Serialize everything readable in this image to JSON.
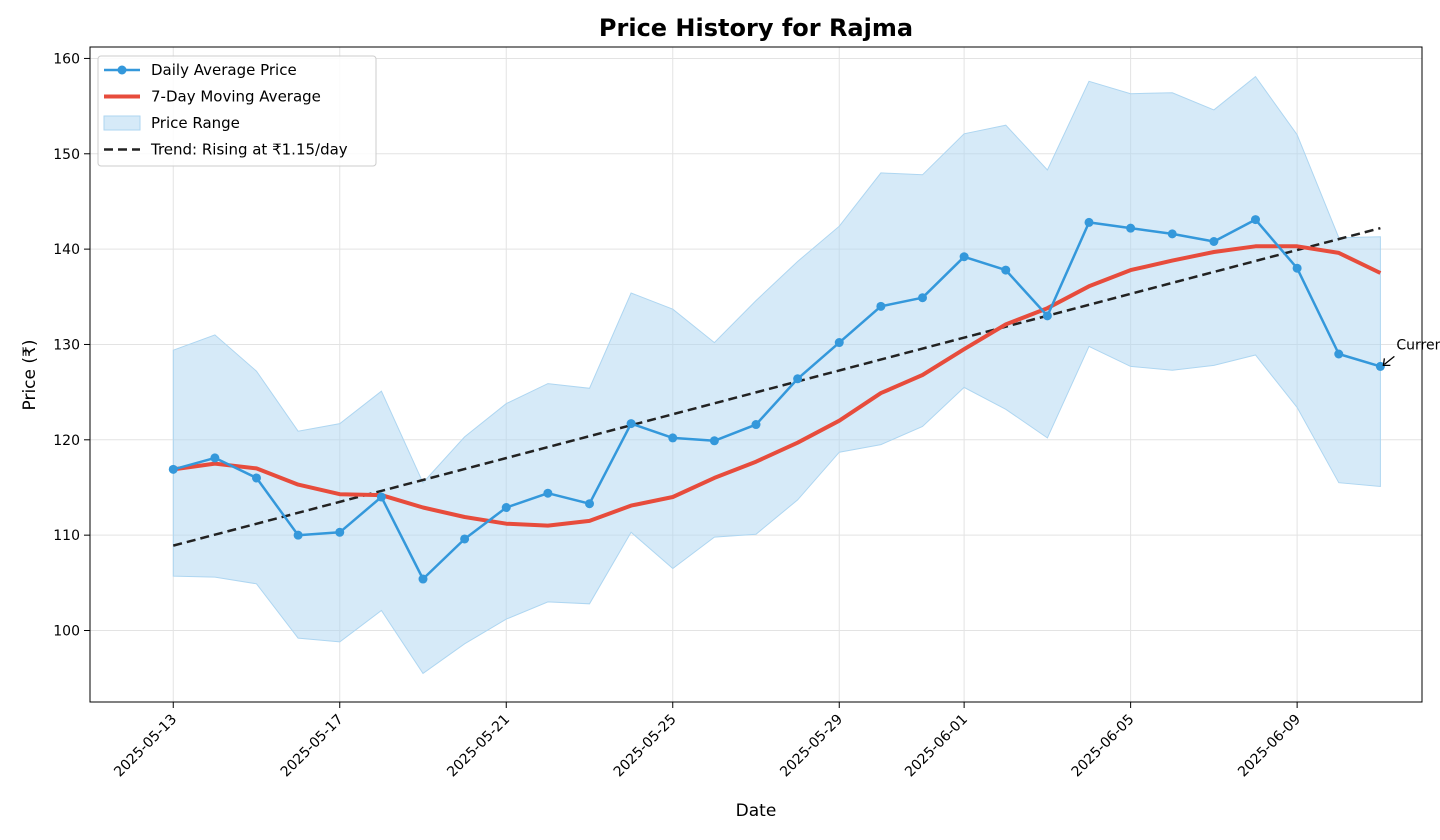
{
  "chart_data": {
    "type": "line",
    "title": "Price History for Rajma",
    "xlabel": "Date",
    "ylabel": "Price (₹)",
    "xlim": [
      "2025-05-11",
      "2025-06-12"
    ],
    "ylim": [
      92.5,
      161.2
    ],
    "grid": true,
    "legend_position": "top-left",
    "x_ticks": [
      "2025-05-13",
      "2025-05-17",
      "2025-05-21",
      "2025-05-25",
      "2025-05-29",
      "2025-06-01",
      "2025-06-05",
      "2025-06-09"
    ],
    "y_ticks": [
      100,
      110,
      120,
      130,
      140,
      150,
      160
    ],
    "dates": [
      "2025-05-13",
      "2025-05-14",
      "2025-05-15",
      "2025-05-16",
      "2025-05-17",
      "2025-05-18",
      "2025-05-19",
      "2025-05-20",
      "2025-05-21",
      "2025-05-22",
      "2025-05-23",
      "2025-05-24",
      "2025-05-25",
      "2025-05-26",
      "2025-05-27",
      "2025-05-28",
      "2025-05-29",
      "2025-05-30",
      "2025-05-31",
      "2025-06-01",
      "2025-06-02",
      "2025-06-03",
      "2025-06-04",
      "2025-06-05",
      "2025-06-06",
      "2025-06-07",
      "2025-06-08",
      "2025-06-09",
      "2025-06-10",
      "2025-06-11"
    ],
    "series": [
      {
        "name": "Daily Average Price",
        "color": "#3498db",
        "style": "line-marker",
        "values": [
          116.9,
          118.1,
          116.0,
          110.0,
          110.3,
          114.0,
          105.4,
          109.6,
          112.9,
          114.4,
          113.3,
          121.7,
          120.2,
          119.9,
          121.6,
          126.4,
          130.2,
          134.0,
          134.9,
          139.2,
          137.8,
          133.0,
          142.8,
          142.2,
          141.6,
          140.8,
          143.1,
          138.0,
          129.0,
          127.7
        ]
      },
      {
        "name": "7-Day Moving Average",
        "color": "#e74c3c",
        "style": "line",
        "values": [
          116.9,
          117.5,
          117.0,
          115.3,
          114.3,
          114.2,
          112.9,
          111.9,
          111.2,
          111.0,
          111.5,
          113.1,
          114.0,
          116.0,
          117.7,
          119.7,
          122.0,
          124.9,
          126.8,
          129.5,
          132.1,
          133.8,
          136.1,
          137.8,
          138.8,
          139.7,
          140.3,
          140.3,
          139.6,
          137.5
        ]
      },
      {
        "name": "Price Range",
        "color": "#aed6f1",
        "style": "band",
        "upper": [
          129.4,
          131.0,
          127.2,
          120.9,
          121.7,
          125.1,
          115.5,
          120.3,
          123.8,
          125.9,
          125.4,
          135.4,
          133.7,
          130.2,
          134.6,
          138.7,
          142.4,
          148.0,
          147.8,
          152.1,
          153.0,
          148.3,
          157.6,
          156.3,
          156.4,
          154.6,
          158.1,
          152.0,
          141.2,
          141.3
        ],
        "lower": [
          105.7,
          105.6,
          104.9,
          99.2,
          98.8,
          102.1,
          95.5,
          98.6,
          101.2,
          103.0,
          102.8,
          110.3,
          106.5,
          109.8,
          110.1,
          113.7,
          118.7,
          119.5,
          121.4,
          125.5,
          123.2,
          120.2,
          129.8,
          127.7,
          127.3,
          127.8,
          128.9,
          123.4,
          115.5,
          115.1
        ]
      },
      {
        "name": "Trend: Rising at ₹1.15/day",
        "color": "#222222",
        "style": "dashed",
        "start": 108.9,
        "end": 142.2
      }
    ],
    "annotations": [
      {
        "text": "Current",
        "date": "2025-06-11",
        "value": 127.7
      }
    ]
  }
}
